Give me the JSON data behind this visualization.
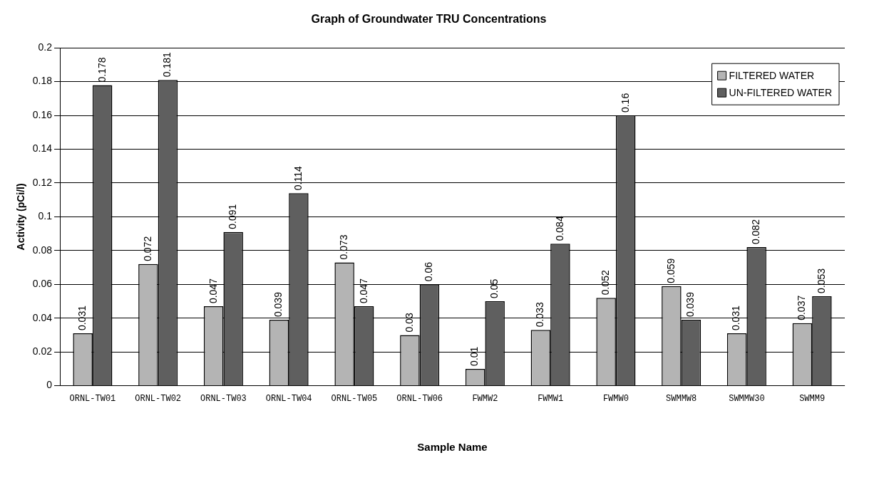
{
  "chart_data": {
    "type": "bar",
    "title": "Graph of Groundwater TRU Concentrations",
    "xlabel": "Sample Name",
    "ylabel": "Activity (pCi/l)",
    "categories": [
      "ORNL-TW01",
      "ORNL-TW02",
      "ORNL-TW03",
      "ORNL-TW04",
      "ORNL-TW05",
      "ORNL-TW06",
      "FWMW2",
      "FWMW1",
      "FWMW0",
      "SWMMW8",
      "SWMMW30",
      "SWMM9"
    ],
    "series": [
      {
        "name": "FILTERED WATER",
        "color": "#b4b4b4",
        "values": [
          0.031,
          0.072,
          0.047,
          0.039,
          0.073,
          0.03,
          0.01,
          0.033,
          0.052,
          0.059,
          0.031,
          0.037
        ]
      },
      {
        "name": "UN-FILTERED WATER",
        "color": "#5f5f5f",
        "values": [
          0.178,
          0.181,
          0.091,
          0.114,
          0.047,
          0.06,
          0.05,
          0.084,
          0.16,
          0.039,
          0.082,
          0.053
        ]
      }
    ],
    "ylim": [
      0,
      0.2
    ],
    "yticks": [
      0,
      0.02,
      0.04,
      0.06,
      0.08,
      0.1,
      0.12,
      0.14,
      0.16,
      0.18,
      0.2
    ],
    "grid": "y",
    "legend": "top right",
    "data_labels": true
  }
}
